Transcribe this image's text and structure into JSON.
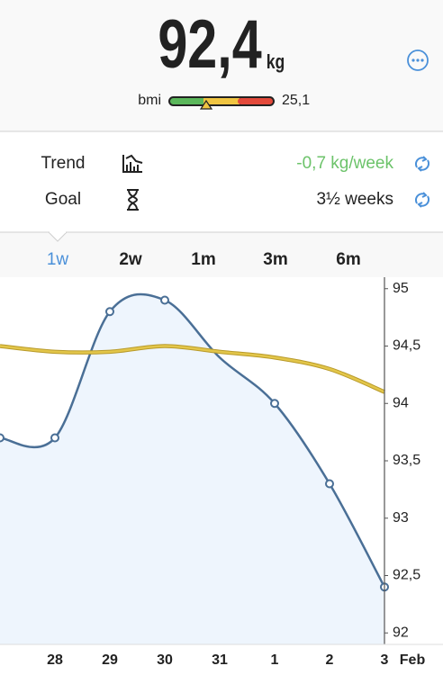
{
  "header": {
    "weight": "92,4",
    "unit": "kg",
    "bmi_label": "bmi",
    "bmi_value": "25,1"
  },
  "stats": {
    "rows": [
      {
        "label": "Trend",
        "value": "-0,7 kg/week"
      },
      {
        "label": "Goal",
        "value": "3½ weeks"
      }
    ]
  },
  "tabs": {
    "items": [
      "1w",
      "2w",
      "1m",
      "3m",
      "6m"
    ],
    "selected": 0
  },
  "chart_data": {
    "type": "line",
    "categories": [
      null,
      "28",
      "29",
      "30",
      "31",
      "1",
      "2",
      "3"
    ],
    "month_label": "Feb",
    "series": [
      {
        "color": "#4a6f96",
        "fill": "#eef5fd",
        "values": [
          93.7,
          93.7,
          94.8,
          94.9,
          94.4,
          94.0,
          93.3,
          92.4
        ],
        "markers": [
          true,
          true,
          true,
          true,
          false,
          true,
          true,
          true
        ]
      },
      {
        "color": "#e3c64a",
        "values": [
          94.5,
          94.45,
          94.45,
          94.5,
          94.45,
          94.4,
          94.3,
          94.1
        ]
      }
    ],
    "ylim": [
      91.9,
      95.1
    ],
    "yticks": [
      95,
      {
        "value": 94.5,
        "label": "94,5"
      },
      94,
      {
        "value": 93.5,
        "label": "93,5"
      },
      93,
      {
        "value": 92.5,
        "label": "92,5"
      },
      92
    ],
    "grid": false
  }
}
